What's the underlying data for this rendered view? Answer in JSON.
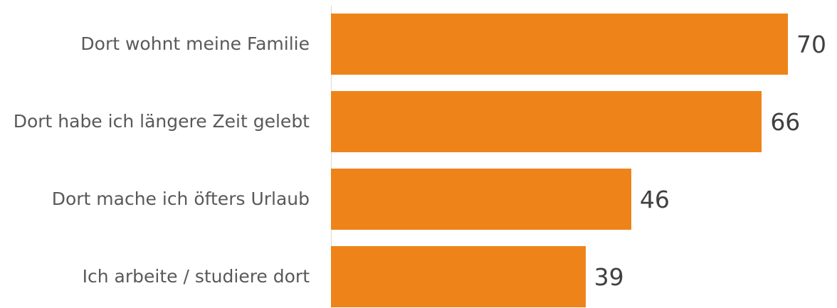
{
  "chart_data": {
    "type": "bar",
    "orientation": "horizontal",
    "categories": [
      "Dort wohnt meine Familie",
      "Dort habe ich längere Zeit gelebt",
      "Dort mache ich öfters Urlaub",
      "Ich arbeite / studiere dort"
    ],
    "values": [
      70,
      66,
      46,
      39
    ],
    "color": "#ee8419"
  }
}
